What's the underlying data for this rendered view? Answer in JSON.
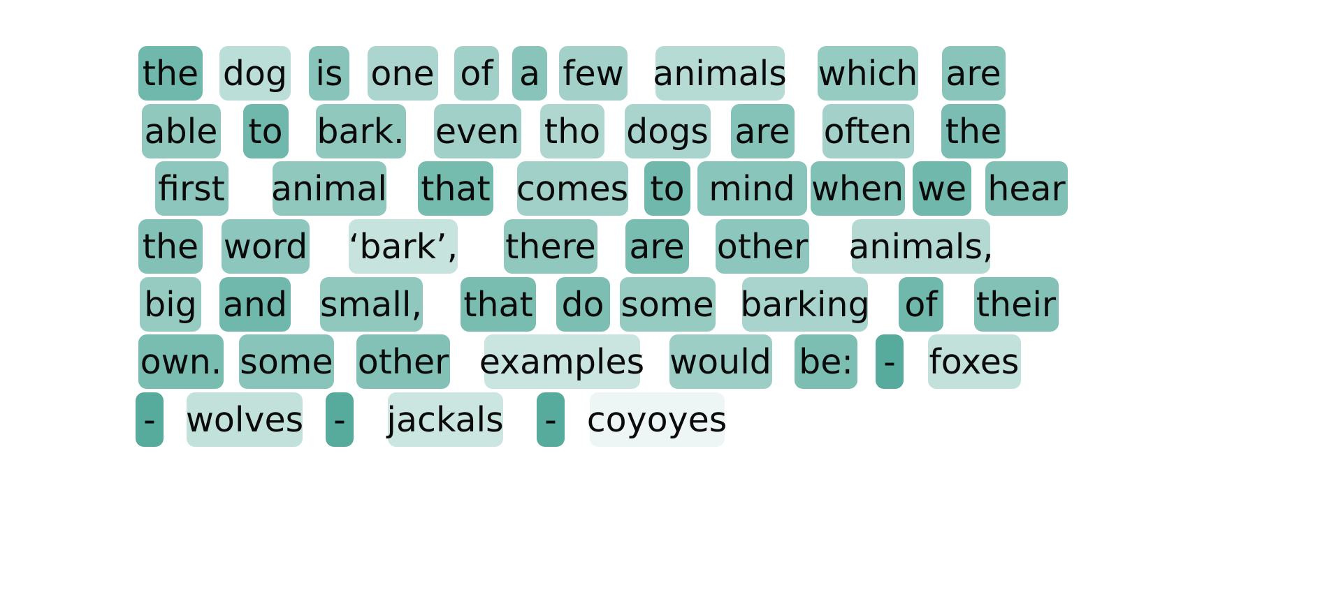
{
  "tokens": [
    {
      "text": "the",
      "w": 0.75
    },
    {
      "text": "dog",
      "w": 0.35
    },
    {
      "text": "is",
      "w": 0.62
    },
    {
      "text": "one",
      "w": 0.44
    },
    {
      "text": "of",
      "w": 0.49
    },
    {
      "text": "a",
      "w": 0.62
    },
    {
      "text": "few",
      "w": 0.48
    },
    {
      "text": "animals",
      "w": 0.38
    },
    {
      "text": "which",
      "w": 0.55
    },
    {
      "text": "are",
      "w": 0.62
    },
    {
      "text": "able",
      "w": 0.58
    },
    {
      "text": "to",
      "w": 0.75
    },
    {
      "text": "bark.",
      "w": 0.58
    },
    {
      "text": "even",
      "w": 0.5
    },
    {
      "text": "tho",
      "w": 0.42
    },
    {
      "text": "dogs",
      "w": 0.45
    },
    {
      "text": "are",
      "w": 0.64
    },
    {
      "text": "often",
      "w": 0.48
    },
    {
      "text": "the",
      "w": 0.69
    },
    {
      "text": "first",
      "w": 0.6
    },
    {
      "text": "animal",
      "w": 0.58
    },
    {
      "text": "that",
      "w": 0.72
    },
    {
      "text": "comes",
      "w": 0.5
    },
    {
      "text": "to",
      "w": 0.75
    },
    {
      "text": "mind",
      "w": 0.61
    },
    {
      "text": "when",
      "w": 0.66
    },
    {
      "text": "we",
      "w": 0.75
    },
    {
      "text": "hear",
      "w": 0.66
    },
    {
      "text": "the",
      "w": 0.65
    },
    {
      "text": "word",
      "w": 0.6
    },
    {
      "text": "‘bark’,",
      "w": 0.3
    },
    {
      "text": "there",
      "w": 0.58
    },
    {
      "text": "are",
      "w": 0.7
    },
    {
      "text": "other",
      "w": 0.6
    },
    {
      "text": "animals,",
      "w": 0.4
    },
    {
      "text": "big",
      "w": 0.55
    },
    {
      "text": "and",
      "w": 0.75
    },
    {
      "text": "small,",
      "w": 0.58
    },
    {
      "text": "that",
      "w": 0.7
    },
    {
      "text": "do",
      "w": 0.68
    },
    {
      "text": "some",
      "w": 0.55
    },
    {
      "text": "barking",
      "w": 0.45
    },
    {
      "text": "of",
      "w": 0.75
    },
    {
      "text": "their",
      "w": 0.65
    },
    {
      "text": "own.",
      "w": 0.7
    },
    {
      "text": "some",
      "w": 0.62
    },
    {
      "text": "other",
      "w": 0.65
    },
    {
      "text": "examples",
      "w": 0.28
    },
    {
      "text": "would",
      "w": 0.52
    },
    {
      "text": "be:",
      "w": 0.68
    },
    {
      "text": "-",
      "w": 0.88
    },
    {
      "text": "foxes",
      "w": 0.32
    },
    {
      "text": "-",
      "w": 0.88
    },
    {
      "text": "wolves",
      "w": 0.32
    },
    {
      "text": "-",
      "w": 0.88
    },
    {
      "text": "jackals",
      "w": 0.27
    },
    {
      "text": "-",
      "w": 0.88
    },
    {
      "text": "coyoyes",
      "w": 0.09
    }
  ],
  "colors": {
    "low": "#ffffff",
    "high": "#40a08f"
  }
}
